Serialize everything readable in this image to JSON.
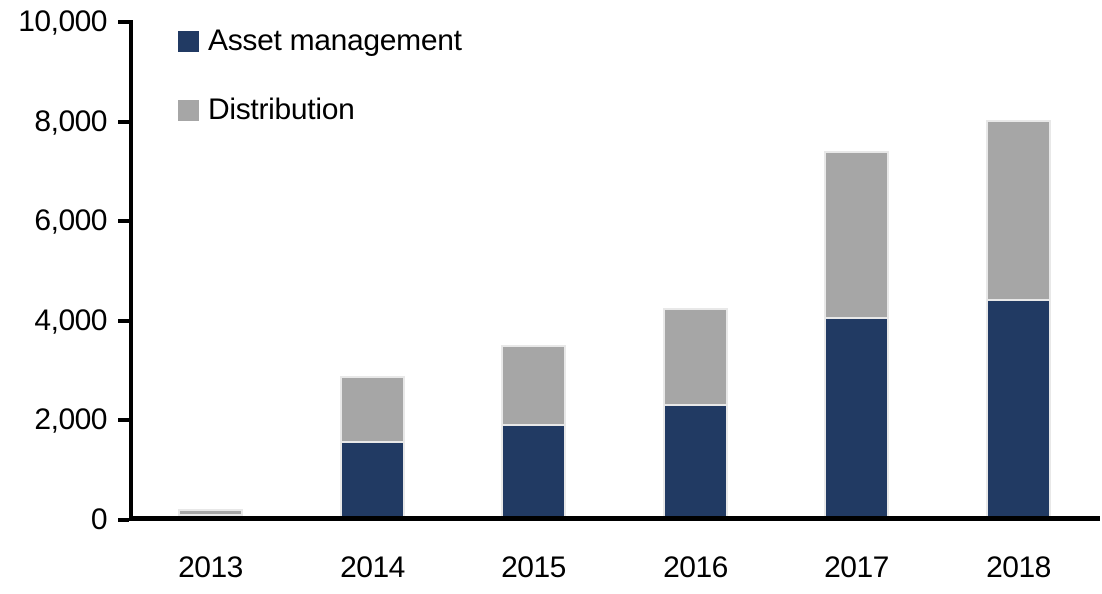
{
  "chart_data": {
    "type": "bar",
    "stacked": true,
    "title": "",
    "xlabel": "",
    "ylabel": "",
    "categories": [
      "2013",
      "2014",
      "2015",
      "2016",
      "2017",
      "2018"
    ],
    "series": [
      {
        "name": "Asset management",
        "color": "#213A63",
        "values": [
          90,
          1550,
          1880,
          2290,
          4030,
          4410
        ]
      },
      {
        "name": "Distribution",
        "color": "#A6A6A6",
        "values": [
          100,
          1310,
          1600,
          1930,
          3350,
          3590
        ]
      }
    ],
    "totals": [
      190,
      2860,
      3480,
      4220,
      7380,
      8000
    ],
    "ylim": [
      0,
      10000
    ],
    "ytick_interval": 2000,
    "ytick_labels": [
      "0",
      "2,000",
      "4,000",
      "6,000",
      "8,000",
      "10,000"
    ],
    "grid": false,
    "legend_position": "top-left",
    "axis_color": "#000000",
    "background_color": "#FFFFFF"
  }
}
